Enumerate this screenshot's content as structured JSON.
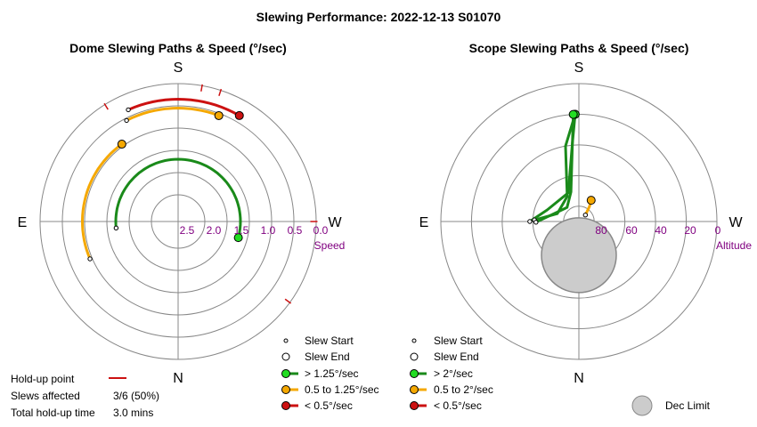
{
  "title": "Slewing Performance: 2022-12-13 S01070",
  "dome": {
    "subtitle": "Dome Slewing Paths & Speed (°/sec)",
    "directions": {
      "s": "S",
      "n": "N",
      "e": "E",
      "w": "W"
    },
    "radial_axis_label": "Speed",
    "tick_labels": [
      "2.5",
      "2.0",
      "1.5",
      "1.0",
      "0.5",
      "0.0"
    ]
  },
  "scope": {
    "subtitle": "Scope Slewing Paths & Speed (°/sec)",
    "directions": {
      "s": "S",
      "n": "N",
      "e": "E",
      "w": "W"
    },
    "radial_axis_label": "Altitude",
    "tick_labels": [
      "80",
      "60",
      "40",
      "20",
      "0"
    ]
  },
  "dome_legend": {
    "slew_start": "Slew Start",
    "slew_end": "Slew End",
    "fast": "> 1.25°/sec",
    "medium": "0.5 to 1.25°/sec",
    "slow": "< 0.5°/sec"
  },
  "scope_legend": {
    "slew_start": "Slew Start",
    "slew_end": "Slew End",
    "fast": "> 2°/sec",
    "medium": "0.5 to 2°/sec",
    "slow": "< 0.5°/sec",
    "dec_limit": "Dec Limit"
  },
  "holdup": {
    "point_label": "Hold-up point",
    "slews_affected_label": "Slews affected",
    "slews_affected_value": "3/6 (50%)",
    "total_time_label": "Total hold-up time",
    "total_time_value": "3.0 mins"
  },
  "colors": {
    "fast": "#1a8a1a",
    "fast_marker": "#22dd22",
    "medium": "#f5a800",
    "slow": "#cc1111",
    "grid": "#888888",
    "dec_limit": "#cccccc",
    "tick": "#800080"
  },
  "chart_data": [
    {
      "type": "polar",
      "title": "Dome Slewing Paths & Speed (°/sec)",
      "angular_axis": "azimuth",
      "radial_axis": "speed (°/sec)",
      "radial_range": [
        2.5,
        0.0
      ],
      "rings": [
        2.5,
        2.0,
        1.5,
        1.0,
        0.5,
        0.0
      ],
      "series": [
        {
          "speed_class": "fast",
          "speed": 1.7,
          "az_start": 84,
          "az_end": 285
        },
        {
          "speed_class": "medium",
          "speed": 0.95,
          "az_start": 67,
          "az_end": 144
        },
        {
          "speed_class": "medium",
          "speed": 0.55,
          "az_start": 153,
          "az_end": 201
        },
        {
          "speed_class": "slow",
          "speed": 0.35,
          "az_start": 156,
          "az_end": 210
        }
      ],
      "holdup_points": [
        {
          "az": 190,
          "speed": 0.05
        },
        {
          "az": 198,
          "speed": 0.05
        },
        {
          "az": 148,
          "speed": 0.05
        },
        {
          "az": 270,
          "speed": 0.05
        },
        {
          "az": 306,
          "speed": 0.05
        }
      ]
    },
    {
      "type": "polar",
      "title": "Scope Slewing Paths & Speed (°/sec)",
      "angular_axis": "azimuth",
      "radial_axis": "altitude (°)",
      "radial_range": [
        90,
        0
      ],
      "rings": [
        80,
        60,
        40,
        20,
        0
      ],
      "dec_limit": {
        "az": 0,
        "alt": 68
      },
      "series": [
        {
          "speed_class": "fast",
          "points": [
            [
              90,
              58
            ],
            [
              110,
              68
            ],
            [
              160,
              70
            ],
            [
              175,
              40
            ],
            [
              178,
              20
            ]
          ]
        },
        {
          "speed_class": "fast",
          "points": [
            [
              92,
              61
            ],
            [
              110,
              75
            ],
            [
              155,
              72
            ],
            [
              170,
              40
            ],
            [
              178,
              20
            ]
          ]
        },
        {
          "speed_class": "fast",
          "points": [
            [
              89,
              62
            ],
            [
              140,
              78
            ],
            [
              165,
              70
            ],
            [
              177,
              20
            ]
          ]
        },
        {
          "speed_class": "medium",
          "points": [
            [
              225,
              84
            ],
            [
              215,
              78
            ],
            [
              210,
              74
            ]
          ]
        }
      ]
    }
  ]
}
